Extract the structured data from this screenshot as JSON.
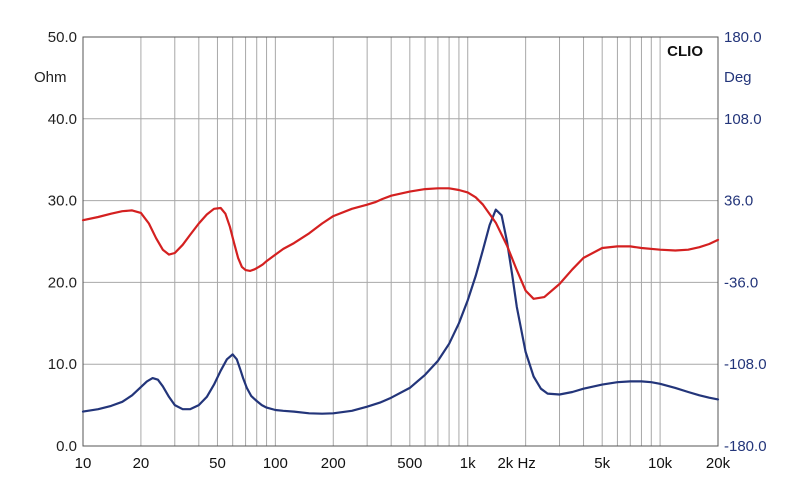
{
  "chart_data": {
    "type": "line",
    "brand": "CLIO",
    "xscale": "log",
    "xlim": [
      10,
      20000
    ],
    "x_tick_labels": [
      {
        "x": 10,
        "label": "10"
      },
      {
        "x": 20,
        "label": "20"
      },
      {
        "x": 50,
        "label": "50"
      },
      {
        "x": 100,
        "label": "100"
      },
      {
        "x": 200,
        "label": "200"
      },
      {
        "x": 500,
        "label": "500"
      },
      {
        "x": 1000,
        "label": "1k"
      },
      {
        "x": 2000,
        "label": "2k Hz"
      },
      {
        "x": 5000,
        "label": "5k"
      },
      {
        "x": 10000,
        "label": "10k"
      },
      {
        "x": 20000,
        "label": "20k"
      }
    ],
    "ylabel_left": "Ohm",
    "ylim_left": [
      0,
      50
    ],
    "y_left_ticks": [
      {
        "v": 0,
        "label": "0.0"
      },
      {
        "v": 10,
        "label": "10.0"
      },
      {
        "v": 20,
        "label": "20.0"
      },
      {
        "v": 30,
        "label": "30.0"
      },
      {
        "v": 40,
        "label": "40.0"
      },
      {
        "v": 50,
        "label": "50.0"
      }
    ],
    "ylabel_right": "Deg",
    "ylim_right": [
      -180,
      180
    ],
    "y_right_ticks": [
      {
        "v": -180,
        "label": "-180.0"
      },
      {
        "v": -108,
        "label": "-108.0"
      },
      {
        "v": -36,
        "label": "-36.0"
      },
      {
        "v": 36,
        "label": "36.0"
      },
      {
        "v": 108,
        "label": "108.0"
      },
      {
        "v": 180,
        "label": "180.0"
      }
    ],
    "grid": true,
    "series": [
      {
        "color": "#23357a",
        "axis": "left",
        "x": [
          10,
          12,
          14,
          16,
          18,
          20,
          21.5,
          23,
          24.5,
          26,
          28,
          30,
          33,
          36,
          40,
          44,
          48,
          52,
          56,
          60,
          63,
          66,
          68,
          71,
          75,
          80,
          85,
          90,
          100,
          110,
          125,
          150,
          175,
          200,
          250,
          300,
          350,
          400,
          500,
          600,
          700,
          800,
          900,
          1000,
          1100,
          1200,
          1300,
          1400,
          1500,
          1600,
          1700,
          1800,
          2000,
          2200,
          2400,
          2600,
          3000,
          3500,
          4000,
          5000,
          6000,
          7000,
          8000,
          9000,
          10000,
          12000,
          14000,
          16000,
          18000,
          20000
        ],
        "y": [
          4.2,
          4.5,
          4.9,
          5.4,
          6.2,
          7.2,
          7.9,
          8.3,
          8.1,
          7.3,
          6.0,
          5.0,
          4.5,
          4.5,
          5.0,
          6.0,
          7.5,
          9.2,
          10.6,
          11.2,
          10.6,
          9.2,
          8.3,
          7.1,
          6.1,
          5.5,
          5.0,
          4.7,
          4.4,
          4.3,
          4.2,
          4.0,
          3.95,
          4.0,
          4.3,
          4.8,
          5.3,
          5.9,
          7.1,
          8.7,
          10.4,
          12.5,
          15.0,
          17.8,
          20.8,
          24.0,
          27.0,
          28.9,
          28.2,
          25.0,
          21.0,
          17.0,
          11.5,
          8.5,
          7.0,
          6.4,
          6.3,
          6.6,
          7.0,
          7.5,
          7.8,
          7.9,
          7.9,
          7.8,
          7.6,
          7.1,
          6.6,
          6.2,
          5.9,
          5.7
        ]
      },
      {
        "color": "#d42020",
        "axis": "left",
        "x": [
          10,
          12,
          14,
          16,
          18,
          20,
          22,
          24,
          26,
          28,
          30,
          33,
          36,
          40,
          44,
          48,
          52,
          55,
          58,
          61,
          64,
          67,
          70,
          74,
          78,
          82,
          86,
          90,
          100,
          110,
          125,
          150,
          175,
          200,
          250,
          300,
          330,
          360,
          400,
          500,
          600,
          700,
          800,
          900,
          1000,
          1100,
          1200,
          1400,
          1600,
          1800,
          2000,
          2200,
          2500,
          3000,
          3500,
          4000,
          5000,
          6000,
          7000,
          8000,
          10000,
          12000,
          14000,
          16000,
          18000,
          20000
        ],
        "y": [
          27.6,
          28.0,
          28.4,
          28.7,
          28.8,
          28.5,
          27.2,
          25.4,
          24.0,
          23.4,
          23.6,
          24.6,
          25.8,
          27.2,
          28.3,
          29.0,
          29.1,
          28.4,
          26.8,
          24.8,
          23.0,
          21.9,
          21.5,
          21.4,
          21.6,
          21.9,
          22.2,
          22.6,
          23.4,
          24.1,
          24.8,
          26.0,
          27.2,
          28.1,
          29.0,
          29.5,
          29.8,
          30.2,
          30.6,
          31.1,
          31.4,
          31.5,
          31.5,
          31.3,
          31.0,
          30.4,
          29.5,
          27.3,
          24.5,
          21.5,
          19.0,
          18.0,
          18.2,
          19.8,
          21.6,
          23.0,
          24.2,
          24.4,
          24.4,
          24.2,
          24.0,
          23.9,
          24.0,
          24.3,
          24.7,
          25.2
        ]
      }
    ]
  }
}
